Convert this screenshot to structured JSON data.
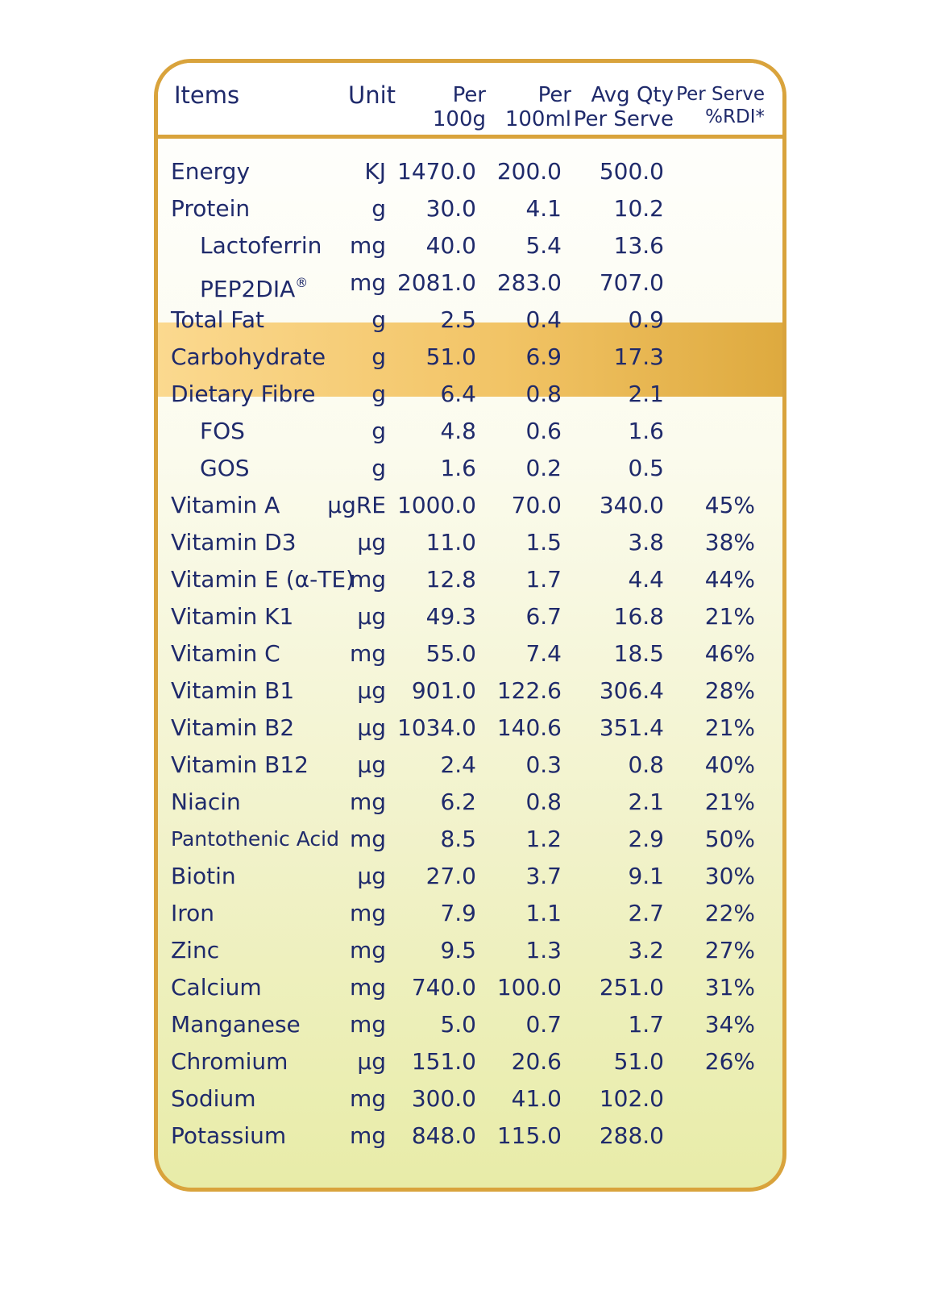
{
  "header": {
    "items": "Items",
    "unit": "Unit",
    "per100g": [
      "Per",
      "100g"
    ],
    "per100ml": [
      "Per",
      "100ml"
    ],
    "avg": [
      "Avg Qty",
      "Per Serve"
    ],
    "rdi": [
      "Per Serve",
      "%RDI*"
    ]
  },
  "rows": [
    {
      "name": "Energy",
      "unit": "KJ",
      "per100g": "1470.0",
      "per100ml": "200.0",
      "serve": "500.0",
      "rdi": ""
    },
    {
      "name": "Protein",
      "unit": "g",
      "per100g": "30.0",
      "per100ml": "4.1",
      "serve": "10.2",
      "rdi": ""
    },
    {
      "name": "Lactoferrin",
      "unit": "mg",
      "per100g": "40.0",
      "per100ml": "5.4",
      "serve": "13.6",
      "rdi": ""
    },
    {
      "name": "PEP2DIA",
      "unit": "mg",
      "per100g": "2081.0",
      "per100ml": "283.0",
      "serve": "707.0",
      "rdi": ""
    },
    {
      "name": "Total Fat",
      "unit": "g",
      "per100g": "2.5",
      "per100ml": "0.4",
      "serve": "0.9",
      "rdi": ""
    },
    {
      "name": "Carbohydrate",
      "unit": "g",
      "per100g": "51.0",
      "per100ml": "6.9",
      "serve": "17.3",
      "rdi": ""
    },
    {
      "name": "Dietary Fibre",
      "unit": "g",
      "per100g": "6.4",
      "per100ml": "0.8",
      "serve": "2.1",
      "rdi": ""
    },
    {
      "name": "FOS",
      "unit": "g",
      "per100g": "4.8",
      "per100ml": "0.6",
      "serve": "1.6",
      "rdi": ""
    },
    {
      "name": "GOS",
      "unit": "g",
      "per100g": "1.6",
      "per100ml": "0.2",
      "serve": "0.5",
      "rdi": ""
    },
    {
      "name": "Vitamin A",
      "unit": "μgRE",
      "per100g": "1000.0",
      "per100ml": "70.0",
      "serve": "340.0",
      "rdi": "45%"
    },
    {
      "name": "Vitamin D3",
      "unit": "μg",
      "per100g": "11.0",
      "per100ml": "1.5",
      "serve": "3.8",
      "rdi": "38%"
    },
    {
      "name": "Vitamin E (α-TE)",
      "unit": "mg",
      "per100g": "12.8",
      "per100ml": "1.7",
      "serve": "4.4",
      "rdi": "44%"
    },
    {
      "name": "Vitamin K1",
      "unit": "μg",
      "per100g": "49.3",
      "per100ml": "6.7",
      "serve": "16.8",
      "rdi": "21%"
    },
    {
      "name": "Vitamin C",
      "unit": "mg",
      "per100g": "55.0",
      "per100ml": "7.4",
      "serve": "18.5",
      "rdi": "46%"
    },
    {
      "name": "Vitamin B1",
      "unit": "μg",
      "per100g": "901.0",
      "per100ml": "122.6",
      "serve": "306.4",
      "rdi": "28%"
    },
    {
      "name": "Vitamin B2",
      "unit": "μg",
      "per100g": "1034.0",
      "per100ml": "140.6",
      "serve": "351.4",
      "rdi": "21%"
    },
    {
      "name": "Vitamin B12",
      "unit": "μg",
      "per100g": "2.4",
      "per100ml": "0.3",
      "serve": "0.8",
      "rdi": "40%"
    },
    {
      "name": "Niacin",
      "unit": "mg",
      "per100g": "6.2",
      "per100ml": "0.8",
      "serve": "2.1",
      "rdi": "21%"
    },
    {
      "name": "Pantothenic Acid",
      "unit": "mg",
      "per100g": "8.5",
      "per100ml": "1.2",
      "serve": "2.9",
      "rdi": "50%"
    },
    {
      "name": "Biotin",
      "unit": "μg",
      "per100g": "27.0",
      "per100ml": "3.7",
      "serve": "9.1",
      "rdi": "30%"
    },
    {
      "name": "Iron",
      "unit": "mg",
      "per100g": "7.9",
      "per100ml": "1.1",
      "serve": "2.7",
      "rdi": "22%"
    },
    {
      "name": "Zinc",
      "unit": "mg",
      "per100g": "9.5",
      "per100ml": "1.3",
      "serve": "3.2",
      "rdi": "27%"
    },
    {
      "name": "Calcium",
      "unit": "mg",
      "per100g": "740.0",
      "per100ml": "100.0",
      "serve": "251.0",
      "rdi": "31%"
    },
    {
      "name": "Manganese",
      "unit": "mg",
      "per100g": "5.0",
      "per100ml": "0.7",
      "serve": "1.7",
      "rdi": "34%"
    },
    {
      "name": "Chromium",
      "unit": "μg",
      "per100g": "151.0",
      "per100ml": "20.6",
      "serve": "51.0",
      "rdi": "26%"
    },
    {
      "name": "Sodium",
      "unit": "mg",
      "per100g": "300.0",
      "per100ml": "41.0",
      "serve": "102.0",
      "rdi": ""
    },
    {
      "name": "Potassium",
      "unit": "mg",
      "per100g": "848.0",
      "per100ml": "115.0",
      "serve": "288.0",
      "rdi": ""
    }
  ],
  "reg_mark": "®",
  "colors": {
    "text": "#1f2a6b",
    "border": "#d9a33c",
    "highlight": "#f2c466"
  }
}
